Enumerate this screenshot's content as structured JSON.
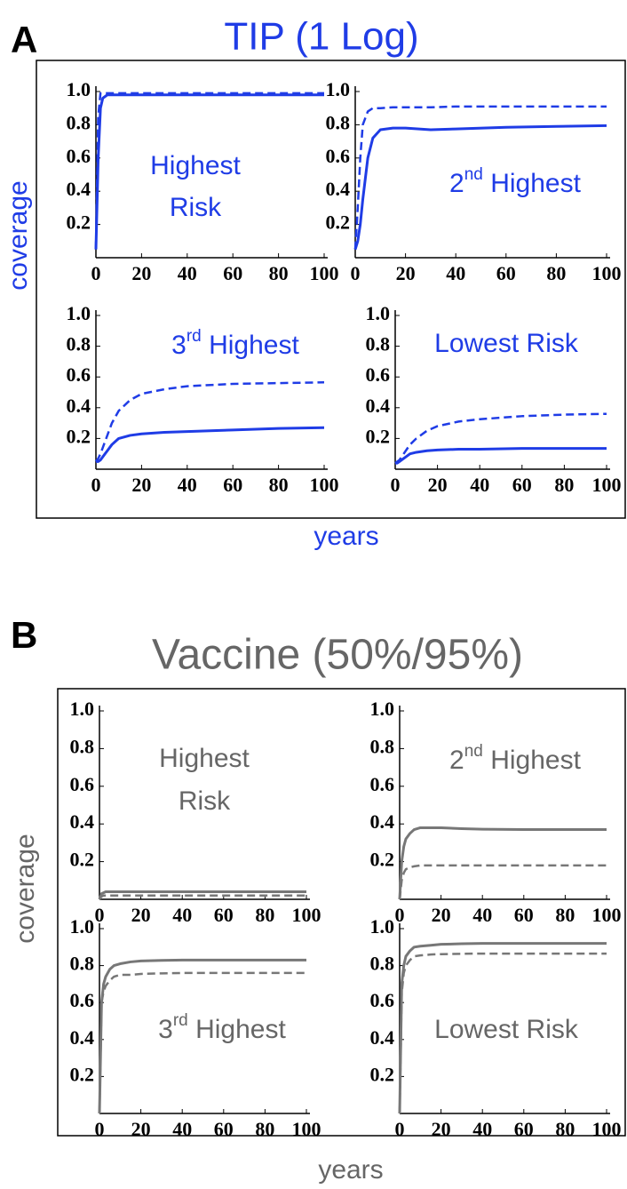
{
  "panels": [
    {
      "letter": "A",
      "title": "TIP (1 Log)",
      "ylabel": "coverage",
      "xlabel": "years",
      "color": "#1f3ce6"
    },
    {
      "letter": "B",
      "title": "Vaccine (50%/95%)",
      "ylabel": "coverage",
      "xlabel": "years",
      "color": "#666666"
    }
  ],
  "chart_data": [
    {
      "type": "line",
      "annotation": [
        [
          {
            "text": "Highest"
          }
        ],
        [
          {
            "text": "Risk"
          }
        ]
      ],
      "x": [
        0,
        1,
        2,
        3,
        5,
        7,
        10,
        15,
        20,
        30,
        40,
        60,
        80,
        100
      ],
      "xlim": [
        0,
        100
      ],
      "xticks": [
        0,
        20,
        40,
        60,
        80,
        100
      ],
      "ylim": [
        0,
        1
      ],
      "yticks": [
        0.2,
        0.4,
        0.6,
        0.8,
        {
          "value": 1,
          "label": "1.0"
        }
      ],
      "series": [
        {
          "color": "#1f3ce6",
          "dash": false,
          "values": [
            0.05,
            0.6,
            0.9,
            0.96,
            0.98,
            0.98,
            0.98,
            0.98,
            0.98,
            0.98,
            0.98,
            0.98,
            0.98,
            0.98
          ]
        },
        {
          "color": "#1f3ce6",
          "dash": true,
          "values": [
            0.05,
            0.85,
            0.99,
            0.99,
            0.99,
            0.99,
            0.99,
            0.99,
            0.99,
            0.99,
            0.99,
            0.99,
            0.99,
            0.99
          ]
        }
      ]
    },
    {
      "type": "line",
      "annotation": [
        [
          {
            "text": "2"
          },
          {
            "text": "nd",
            "sup": true
          },
          {
            "text": " Highest"
          }
        ]
      ],
      "x": [
        0,
        1,
        2,
        3,
        5,
        7,
        10,
        15,
        20,
        30,
        40,
        60,
        80,
        100
      ],
      "xlim": [
        0,
        100
      ],
      "xticks": [
        0,
        20,
        40,
        60,
        80,
        100
      ],
      "ylim": [
        0,
        1
      ],
      "yticks": [
        0.2,
        0.4,
        0.6,
        0.8,
        {
          "value": 1,
          "label": "1.0"
        }
      ],
      "series": [
        {
          "color": "#1f3ce6",
          "dash": false,
          "values": [
            0.05,
            0.1,
            0.2,
            0.35,
            0.6,
            0.72,
            0.77,
            0.78,
            0.78,
            0.77,
            0.775,
            0.785,
            0.79,
            0.795
          ]
        },
        {
          "color": "#1f3ce6",
          "dash": true,
          "values": [
            0.05,
            0.3,
            0.6,
            0.8,
            0.88,
            0.9,
            0.9,
            0.905,
            0.905,
            0.905,
            0.91,
            0.91,
            0.91,
            0.91
          ]
        }
      ]
    },
    {
      "type": "line",
      "annotation": [
        [
          {
            "text": "3"
          },
          {
            "text": "rd",
            "sup": true
          },
          {
            "text": " Highest"
          }
        ]
      ],
      "x": [
        0,
        1,
        2,
        3,
        5,
        7,
        10,
        15,
        20,
        30,
        40,
        60,
        80,
        100
      ],
      "xlim": [
        0,
        100
      ],
      "xticks": [
        0,
        20,
        40,
        60,
        80,
        100
      ],
      "ylim": [
        0,
        1
      ],
      "yticks": [
        0.2,
        0.4,
        0.6,
        0.8,
        {
          "value": 1,
          "label": "1.0"
        }
      ],
      "series": [
        {
          "color": "#1f3ce6",
          "dash": false,
          "values": [
            0.05,
            0.05,
            0.06,
            0.08,
            0.12,
            0.16,
            0.2,
            0.22,
            0.23,
            0.24,
            0.245,
            0.255,
            0.265,
            0.27
          ]
        },
        {
          "color": "#1f3ce6",
          "dash": true,
          "values": [
            0.05,
            0.07,
            0.1,
            0.14,
            0.22,
            0.3,
            0.38,
            0.45,
            0.49,
            0.52,
            0.54,
            0.555,
            0.56,
            0.565
          ]
        }
      ]
    },
    {
      "type": "line",
      "annotation": [
        [
          {
            "text": "Lowest Risk"
          }
        ]
      ],
      "x": [
        0,
        1,
        2,
        3,
        5,
        7,
        10,
        15,
        20,
        30,
        40,
        60,
        80,
        100
      ],
      "xlim": [
        0,
        100
      ],
      "xticks": [
        0,
        20,
        40,
        60,
        80,
        100
      ],
      "ylim": [
        0,
        1
      ],
      "yticks": [
        0.2,
        0.4,
        0.6,
        0.8,
        {
          "value": 1,
          "label": "1.0"
        }
      ],
      "series": [
        {
          "color": "#1f3ce6",
          "dash": false,
          "values": [
            0.04,
            0.04,
            0.05,
            0.06,
            0.08,
            0.1,
            0.11,
            0.12,
            0.125,
            0.13,
            0.13,
            0.135,
            0.135,
            0.135
          ]
        },
        {
          "color": "#1f3ce6",
          "dash": true,
          "values": [
            0.04,
            0.05,
            0.06,
            0.08,
            0.12,
            0.16,
            0.2,
            0.25,
            0.28,
            0.31,
            0.325,
            0.345,
            0.355,
            0.36
          ]
        }
      ]
    },
    {
      "type": "line",
      "annotation": [
        [
          {
            "text": "Highest"
          }
        ],
        [
          {
            "text": "Risk"
          }
        ]
      ],
      "x": [
        0,
        1,
        2,
        3,
        5,
        7,
        10,
        15,
        20,
        30,
        40,
        60,
        80,
        100
      ],
      "xlim": [
        0,
        100
      ],
      "xticks": [
        0,
        20,
        40,
        60,
        80,
        100
      ],
      "ylim": [
        0,
        1
      ],
      "yticks": [
        0.2,
        0.4,
        0.6,
        0.8,
        {
          "value": 1,
          "label": "1.0"
        }
      ],
      "series": [
        {
          "color": "#777777",
          "dash": false,
          "values": [
            0,
            0.03,
            0.035,
            0.04,
            0.04,
            0.04,
            0.04,
            0.04,
            0.04,
            0.04,
            0.04,
            0.04,
            0.04,
            0.04
          ]
        },
        {
          "color": "#777777",
          "dash": true,
          "values": [
            0,
            0.015,
            0.02,
            0.02,
            0.02,
            0.02,
            0.02,
            0.02,
            0.02,
            0.02,
            0.02,
            0.02,
            0.02,
            0.02
          ]
        }
      ]
    },
    {
      "type": "line",
      "annotation": [
        [
          {
            "text": "2"
          },
          {
            "text": "nd",
            "sup": true
          },
          {
            "text": " Highest"
          }
        ]
      ],
      "x": [
        0,
        1,
        2,
        3,
        5,
        7,
        10,
        15,
        20,
        30,
        40,
        60,
        80,
        100
      ],
      "xlim": [
        0,
        100
      ],
      "xticks": [
        0,
        20,
        40,
        60,
        80,
        100
      ],
      "ylim": [
        0,
        1
      ],
      "yticks": [
        0.2,
        0.4,
        0.6,
        0.8,
        {
          "value": 1,
          "label": "1.0"
        }
      ],
      "series": [
        {
          "color": "#777777",
          "dash": false,
          "values": [
            0,
            0.2,
            0.28,
            0.32,
            0.35,
            0.37,
            0.38,
            0.38,
            0.38,
            0.375,
            0.372,
            0.37,
            0.37,
            0.37
          ]
        },
        {
          "color": "#777777",
          "dash": true,
          "values": [
            0,
            0.1,
            0.14,
            0.16,
            0.17,
            0.175,
            0.18,
            0.18,
            0.18,
            0.18,
            0.18,
            0.18,
            0.18,
            0.18
          ]
        }
      ]
    },
    {
      "type": "line",
      "annotation": [
        [
          {
            "text": "3"
          },
          {
            "text": "rd",
            "sup": true
          },
          {
            "text": " Highest"
          }
        ]
      ],
      "x": [
        0,
        1,
        2,
        3,
        5,
        7,
        10,
        15,
        20,
        30,
        40,
        60,
        80,
        100
      ],
      "xlim": [
        0,
        100
      ],
      "xticks": [
        0,
        20,
        40,
        60,
        80,
        100
      ],
      "ylim": [
        0,
        1
      ],
      "yticks": [
        0.2,
        0.4,
        0.6,
        0.8,
        {
          "value": 1,
          "label": "1.0"
        }
      ],
      "series": [
        {
          "color": "#777777",
          "dash": false,
          "values": [
            0,
            0.6,
            0.7,
            0.74,
            0.78,
            0.8,
            0.81,
            0.82,
            0.825,
            0.828,
            0.83,
            0.83,
            0.83,
            0.83
          ]
        },
        {
          "color": "#777777",
          "dash": true,
          "values": [
            0,
            0.6,
            0.66,
            0.69,
            0.72,
            0.74,
            0.75,
            0.75,
            0.755,
            0.758,
            0.76,
            0.76,
            0.76,
            0.76
          ]
        }
      ]
    },
    {
      "type": "line",
      "annotation": [
        [
          {
            "text": "Lowest Risk"
          }
        ]
      ],
      "x": [
        0,
        1,
        2,
        3,
        5,
        7,
        10,
        15,
        20,
        30,
        40,
        60,
        80,
        100
      ],
      "xlim": [
        0,
        100
      ],
      "xticks": [
        0,
        20,
        40,
        60,
        80,
        100
      ],
      "ylim": [
        0,
        1
      ],
      "yticks": [
        0.2,
        0.4,
        0.6,
        0.8,
        {
          "value": 1,
          "label": "1.0"
        }
      ],
      "series": [
        {
          "color": "#777777",
          "dash": false,
          "values": [
            0,
            0.7,
            0.8,
            0.85,
            0.88,
            0.9,
            0.905,
            0.91,
            0.915,
            0.918,
            0.92,
            0.92,
            0.92,
            0.92
          ]
        },
        {
          "color": "#777777",
          "dash": true,
          "values": [
            0,
            0.65,
            0.76,
            0.8,
            0.83,
            0.85,
            0.855,
            0.86,
            0.862,
            0.864,
            0.865,
            0.865,
            0.865,
            0.865
          ]
        }
      ]
    }
  ]
}
